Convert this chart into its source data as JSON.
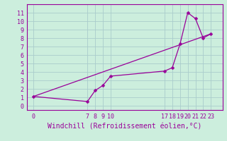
{
  "x": [
    0,
    7,
    8,
    9,
    10,
    17,
    18,
    19,
    20,
    21,
    22,
    23
  ],
  "y": [
    1.1,
    0.5,
    1.8,
    2.4,
    3.5,
    4.1,
    4.5,
    7.3,
    11.0,
    10.3,
    8.0,
    8.5
  ],
  "trend_x": [
    0,
    23
  ],
  "trend_y": [
    1.1,
    8.5
  ],
  "line_color": "#990099",
  "marker_color": "#990099",
  "bg_color": "#cceedd",
  "grid_color": "#aacccc",
  "xlabel": "Windchill (Refroidissement éolien,°C)",
  "xlabel_color": "#990099",
  "xticks": [
    0,
    7,
    8,
    9,
    10,
    17,
    18,
    19,
    20,
    21,
    22,
    23
  ],
  "yticks": [
    0,
    1,
    2,
    3,
    4,
    5,
    6,
    7,
    8,
    9,
    10,
    11
  ],
  "ylim": [
    -0.5,
    12.0
  ],
  "xlim": [
    -0.8,
    24.5
  ],
  "tick_color": "#990099",
  "tick_fontsize": 6.0,
  "xlabel_fontsize": 7.0,
  "marker_size": 2.5,
  "line_width": 0.9
}
